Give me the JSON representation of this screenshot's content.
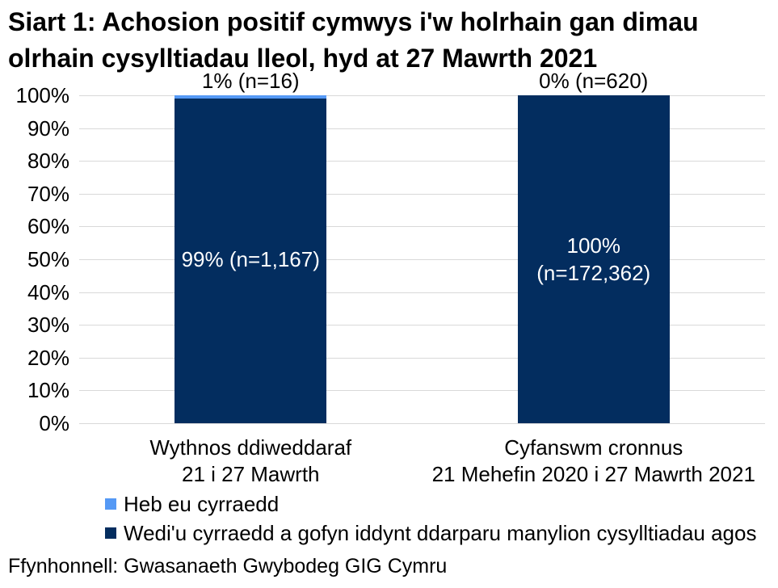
{
  "title_lines": [
    "Siart 1: Achosion positif cymwys i'w holrhain gan dimau",
    "olrhain cysylltiadau lleol, hyd at 27 Mawrth 2021"
  ],
  "source": "Ffynhonnell: Gwasanaeth Gwybodeg GIG Cymru",
  "colors": {
    "light_blue": "#5599F5",
    "navy": "#032D5F",
    "gridline": "#D9D9D9",
    "bar_label_text": "#FFFFFF",
    "text": "#000000",
    "background": "#FFFFFF"
  },
  "legend": [
    {
      "label": "Heb eu cyrraedd",
      "color": "#5599F5"
    },
    {
      "label": "Wedi'u cyrraedd a gofyn iddynt ddarparu manylion cysylltiadau agos",
      "color": "#032D5F"
    }
  ],
  "chart_data": {
    "type": "bar",
    "stacked": true,
    "title": "Siart 1: Achosion positif cymwys i'w holrhain gan dimau olrhain cysylltiadau lleol, hyd at 27 Mawrth 2021",
    "xlabel": "",
    "ylabel": "",
    "ylim": [
      0,
      100
    ],
    "grid": "horizontal",
    "legend_position": "bottom-left",
    "y_ticks": [
      {
        "value": 0,
        "label": "0%"
      },
      {
        "value": 10,
        "label": "10%"
      },
      {
        "value": 20,
        "label": "20%"
      },
      {
        "value": 30,
        "label": "30%"
      },
      {
        "value": 40,
        "label": "40%"
      },
      {
        "value": 50,
        "label": "50%"
      },
      {
        "value": 60,
        "label": "60%"
      },
      {
        "value": 70,
        "label": "70%"
      },
      {
        "value": 80,
        "label": "80%"
      },
      {
        "value": 90,
        "label": "90%"
      },
      {
        "value": 100,
        "label": "100%"
      }
    ],
    "categories": [
      "Wythnos ddiweddaraf 21 i 27 Mawrth",
      "Cyfanswm cronnus 21 Mehefin 2020 i 27 Mawrth 2021"
    ],
    "series": [
      {
        "name": "Heb eu cyrraedd",
        "color": "#5599F5",
        "values": [
          1,
          0
        ],
        "counts": [
          16,
          620
        ]
      },
      {
        "name": "Wedi'u cyrraedd a gofyn iddynt ddarparu manylion cysylltiadau agos",
        "color": "#032D5F",
        "values": [
          99,
          100
        ],
        "counts": [
          1167,
          172362
        ]
      }
    ],
    "bars": [
      {
        "x_label_lines": [
          "Wythnos ddiweddaraf",
          "21 i 27 Mawrth"
        ],
        "light_pct": 1,
        "dark_pct": 99,
        "top_label": "1% (n=16)",
        "inner_label_lines": [
          "99% (n=1,167)"
        ]
      },
      {
        "x_label_lines": [
          "Cyfanswm cronnus",
          "21 Mehefin 2020 i 27 Mawrth 2021"
        ],
        "light_pct": 0,
        "dark_pct": 100,
        "top_label": "0% (n=620)",
        "inner_label_lines": [
          "100%",
          "(n=172,362)"
        ]
      }
    ]
  }
}
